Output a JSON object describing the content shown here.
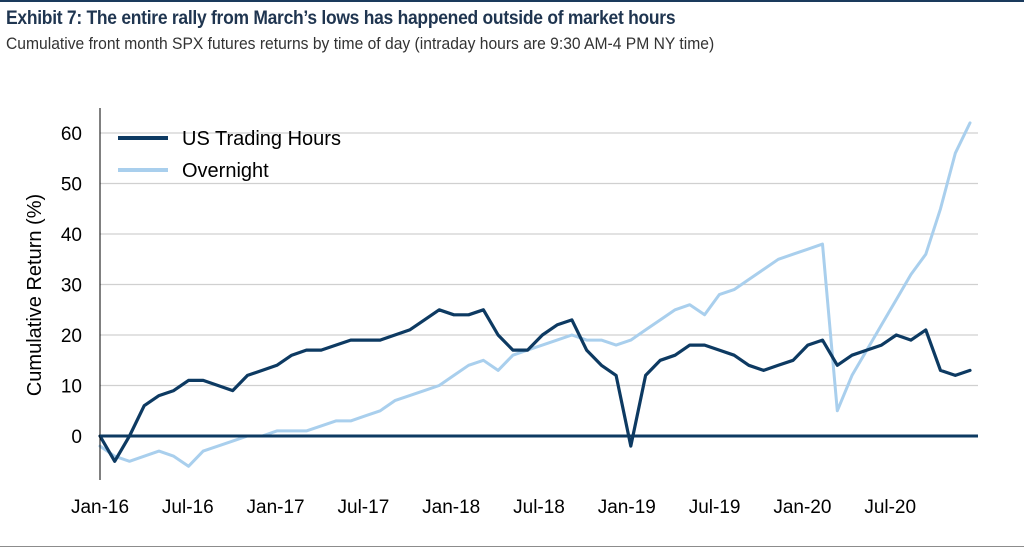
{
  "header": {
    "title": "Exhibit 7: The entire rally from March’s lows has happened outside of market hours",
    "subtitle": "Cumulative front month SPX futures returns by time of day (intraday hours are 9:30 AM-4 PM NY time)"
  },
  "chart_data": {
    "type": "line",
    "ylabel": "Cumulative Return (%)",
    "ylim": [
      -8,
      65
    ],
    "yticks": [
      0,
      10,
      20,
      30,
      40,
      50,
      60
    ],
    "xticks": [
      "Jan-16",
      "Jul-16",
      "Jan-17",
      "Jul-17",
      "Jan-18",
      "Jul-18",
      "Jan-19",
      "Jul-19",
      "Jan-20",
      "Jul-20"
    ],
    "grid": true,
    "legend_position": "top-left",
    "colors": {
      "us": "#0d3a62",
      "overnight": "#a9cfed",
      "zero_line": "#0d3a62",
      "grid": "#d0d0d0"
    },
    "series": [
      {
        "name": "US Trading Hours",
        "x": [
          "Jan-16",
          "Feb-16",
          "Mar-16",
          "Apr-16",
          "May-16",
          "Jun-16",
          "Jul-16",
          "Aug-16",
          "Sep-16",
          "Oct-16",
          "Nov-16",
          "Dec-16",
          "Jan-17",
          "Feb-17",
          "Mar-17",
          "Apr-17",
          "May-17",
          "Jun-17",
          "Jul-17",
          "Aug-17",
          "Sep-17",
          "Oct-17",
          "Nov-17",
          "Dec-17",
          "Jan-18",
          "Feb-18",
          "Mar-18",
          "Apr-18",
          "May-18",
          "Jun-18",
          "Jul-18",
          "Aug-18",
          "Sep-18",
          "Oct-18",
          "Nov-18",
          "Dec-18",
          "Jan-19",
          "Feb-19",
          "Mar-19",
          "Apr-19",
          "May-19",
          "Jun-19",
          "Jul-19",
          "Aug-19",
          "Sep-19",
          "Oct-19",
          "Nov-19",
          "Dec-19",
          "Jan-20",
          "Feb-20",
          "Mar-20",
          "Apr-20",
          "May-20",
          "Jun-20",
          "Jul-20",
          "Aug-20",
          "Sep-20",
          "Oct-20",
          "Nov-20",
          "Dec-20"
        ],
        "values": [
          0,
          -5,
          0,
          6,
          8,
          9,
          11,
          11,
          10,
          9,
          12,
          13,
          14,
          16,
          17,
          17,
          18,
          19,
          19,
          19,
          20,
          21,
          23,
          25,
          24,
          24,
          25,
          20,
          17,
          17,
          20,
          22,
          23,
          17,
          14,
          12,
          -2,
          12,
          15,
          16,
          18,
          18,
          17,
          16,
          14,
          13,
          14,
          15,
          18,
          19,
          14,
          16,
          17,
          18,
          20,
          19,
          21,
          13,
          12,
          13
        ]
      },
      {
        "name": "Overnight",
        "x": [
          "Jan-16",
          "Feb-16",
          "Mar-16",
          "Apr-16",
          "May-16",
          "Jun-16",
          "Jul-16",
          "Aug-16",
          "Sep-16",
          "Oct-16",
          "Nov-16",
          "Dec-16",
          "Jan-17",
          "Feb-17",
          "Mar-17",
          "Apr-17",
          "May-17",
          "Jun-17",
          "Jul-17",
          "Aug-17",
          "Sep-17",
          "Oct-17",
          "Nov-17",
          "Dec-17",
          "Jan-18",
          "Feb-18",
          "Mar-18",
          "Apr-18",
          "May-18",
          "Jun-18",
          "Jul-18",
          "Aug-18",
          "Sep-18",
          "Oct-18",
          "Nov-18",
          "Dec-18",
          "Jan-19",
          "Feb-19",
          "Mar-19",
          "Apr-19",
          "May-19",
          "Jun-19",
          "Jul-19",
          "Aug-19",
          "Sep-19",
          "Oct-19",
          "Nov-19",
          "Dec-19",
          "Jan-20",
          "Feb-20",
          "Mar-20",
          "Apr-20",
          "May-20",
          "Jun-20",
          "Jul-20",
          "Aug-20",
          "Sep-20",
          "Oct-20",
          "Nov-20",
          "Dec-20"
        ],
        "values": [
          -2,
          -4,
          -5,
          -4,
          -3,
          -4,
          -6,
          -3,
          -2,
          -1,
          0,
          0,
          1,
          1,
          1,
          2,
          3,
          3,
          4,
          5,
          7,
          8,
          9,
          10,
          12,
          14,
          15,
          13,
          16,
          17,
          18,
          19,
          20,
          19,
          19,
          18,
          19,
          21,
          23,
          25,
          26,
          24,
          28,
          29,
          31,
          33,
          35,
          36,
          37,
          38,
          5,
          12,
          17,
          22,
          27,
          32,
          36,
          45,
          56,
          62
        ]
      }
    ]
  }
}
